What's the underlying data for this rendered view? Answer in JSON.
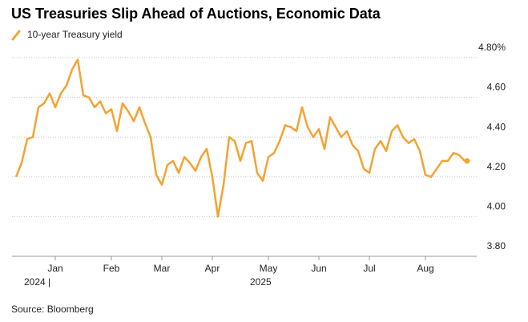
{
  "chart_data": {
    "type": "line",
    "title": "US Treasuries Slip Ahead of Auctions, Economic Data",
    "source": "Source: Bloomberg",
    "year_labels": [
      "2024 |",
      "2025"
    ],
    "categories": [
      null,
      null,
      null,
      null,
      null,
      null,
      null,
      "Jan",
      null,
      null,
      null,
      null,
      null,
      null,
      null,
      null,
      null,
      "Feb",
      null,
      null,
      null,
      null,
      null,
      null,
      null,
      null,
      "Mar",
      null,
      null,
      null,
      null,
      null,
      null,
      null,
      null,
      "Apr",
      null,
      null,
      null,
      null,
      null,
      null,
      null,
      null,
      null,
      "May",
      null,
      null,
      null,
      null,
      null,
      null,
      null,
      null,
      "Jun",
      null,
      null,
      null,
      null,
      null,
      null,
      null,
      null,
      "Jul",
      null,
      null,
      null,
      null,
      null,
      null,
      null,
      null,
      null,
      "Aug",
      null,
      null,
      null,
      null,
      null,
      null,
      null
    ],
    "series": [
      {
        "name": "10-year Treasury yield",
        "color": "#f5a231",
        "values": [
          4.2,
          4.27,
          4.39,
          4.4,
          4.55,
          4.57,
          4.62,
          4.55,
          4.62,
          4.66,
          4.74,
          4.79,
          4.61,
          4.6,
          4.55,
          4.58,
          4.52,
          4.54,
          4.43,
          4.57,
          4.53,
          4.48,
          4.55,
          4.47,
          4.4,
          4.21,
          4.16,
          4.26,
          4.28,
          4.22,
          4.3,
          4.27,
          4.23,
          4.3,
          4.34,
          4.2,
          4.0,
          4.16,
          4.4,
          4.38,
          4.28,
          4.37,
          4.38,
          4.22,
          4.18,
          4.3,
          4.32,
          4.38,
          4.46,
          4.45,
          4.43,
          4.55,
          4.45,
          4.4,
          4.44,
          4.34,
          4.5,
          4.45,
          4.4,
          4.43,
          4.36,
          4.33,
          4.24,
          4.22,
          4.34,
          4.38,
          4.33,
          4.43,
          4.46,
          4.4,
          4.37,
          4.39,
          4.33,
          4.21,
          4.2,
          4.24,
          4.28,
          4.28,
          4.32,
          4.31,
          4.28
        ]
      }
    ],
    "ylim": [
      3.8,
      4.84
    ],
    "yticks": [
      {
        "value": 3.8,
        "label": "3.80"
      },
      {
        "value": 4.0,
        "label": "4.00"
      },
      {
        "value": 4.2,
        "label": "4.20"
      },
      {
        "value": 4.4,
        "label": "4.40"
      },
      {
        "value": 4.6,
        "label": "4.60"
      },
      {
        "value": 4.8,
        "label": "4.80%"
      }
    ],
    "grid": true
  }
}
